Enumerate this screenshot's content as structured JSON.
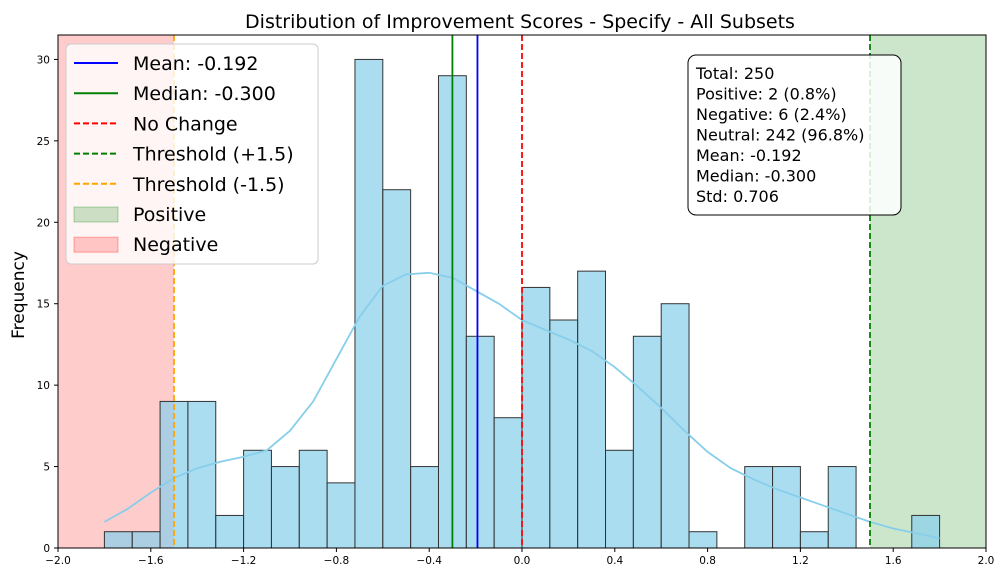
{
  "chart_data": {
    "type": "bar",
    "title": "Distribution of Improvement Scores - Specify - All Subsets",
    "xlabel": "",
    "ylabel": "Frequency",
    "xlim": [
      -2.0,
      2.0
    ],
    "ylim": [
      0,
      31.5
    ],
    "x_ticks": [
      -2.0,
      -1.6,
      -1.2,
      -0.8,
      -0.4,
      0.0,
      0.4,
      0.8,
      1.2,
      1.6,
      2.0
    ],
    "x_tick_labels": [
      "−2.0",
      "−1.6",
      "−1.2",
      "−0.8",
      "−0.4",
      "0.0",
      "0.4",
      "0.8",
      "1.2",
      "1.6",
      "2.0"
    ],
    "y_ticks": [
      0,
      5,
      10,
      15,
      20,
      25,
      30
    ],
    "y_tick_labels": [
      "0",
      "5",
      "10",
      "15",
      "20",
      "25",
      "30"
    ],
    "bin_start": -1.8,
    "bin_width": 0.12,
    "bins": [
      {
        "x0": -1.8,
        "x1": -1.68,
        "count": 1,
        "region": "negative"
      },
      {
        "x0": -1.68,
        "x1": -1.56,
        "count": 1,
        "region": "negative"
      },
      {
        "x0": -1.56,
        "x1": -1.44,
        "count": 9,
        "region": "negative"
      },
      {
        "x0": -1.44,
        "x1": -1.32,
        "count": 9,
        "region": "neutral"
      },
      {
        "x0": -1.32,
        "x1": -1.2,
        "count": 2,
        "region": "neutral"
      },
      {
        "x0": -1.2,
        "x1": -1.08,
        "count": 6,
        "region": "neutral"
      },
      {
        "x0": -1.08,
        "x1": -0.96,
        "count": 5,
        "region": "neutral"
      },
      {
        "x0": -0.96,
        "x1": -0.84,
        "count": 6,
        "region": "neutral"
      },
      {
        "x0": -0.84,
        "x1": -0.72,
        "count": 4,
        "region": "neutral"
      },
      {
        "x0": -0.72,
        "x1": -0.6,
        "count": 30,
        "region": "neutral"
      },
      {
        "x0": -0.6,
        "x1": -0.48,
        "count": 22,
        "region": "neutral"
      },
      {
        "x0": -0.48,
        "x1": -0.36,
        "count": 5,
        "region": "neutral"
      },
      {
        "x0": -0.36,
        "x1": -0.24,
        "count": 29,
        "region": "neutral"
      },
      {
        "x0": -0.24,
        "x1": -0.12,
        "count": 13,
        "region": "neutral"
      },
      {
        "x0": -0.12,
        "x1": 0.0,
        "count": 8,
        "region": "neutral"
      },
      {
        "x0": 0.0,
        "x1": 0.12,
        "count": 16,
        "region": "neutral"
      },
      {
        "x0": 0.12,
        "x1": 0.24,
        "count": 14,
        "region": "neutral"
      },
      {
        "x0": 0.24,
        "x1": 0.36,
        "count": 17,
        "region": "neutral"
      },
      {
        "x0": 0.36,
        "x1": 0.48,
        "count": 6,
        "region": "neutral"
      },
      {
        "x0": 0.48,
        "x1": 0.6,
        "count": 13,
        "region": "neutral"
      },
      {
        "x0": 0.6,
        "x1": 0.72,
        "count": 15,
        "region": "neutral"
      },
      {
        "x0": 0.72,
        "x1": 0.84,
        "count": 1,
        "region": "neutral"
      },
      {
        "x0": 0.84,
        "x1": 0.96,
        "count": 0,
        "region": "neutral"
      },
      {
        "x0": 0.96,
        "x1": 1.08,
        "count": 5,
        "region": "neutral"
      },
      {
        "x0": 1.08,
        "x1": 1.2,
        "count": 5,
        "region": "neutral"
      },
      {
        "x0": 1.2,
        "x1": 1.32,
        "count": 1,
        "region": "neutral"
      },
      {
        "x0": 1.32,
        "x1": 1.44,
        "count": 5,
        "region": "neutral"
      },
      {
        "x0": 1.44,
        "x1": 1.56,
        "count": 0,
        "region": "neutral"
      },
      {
        "x0": 1.56,
        "x1": 1.68,
        "count": 0,
        "region": "neutral"
      },
      {
        "x0": 1.68,
        "x1": 1.8,
        "count": 2,
        "region": "positive"
      }
    ],
    "kde": {
      "x": [
        -1.8,
        -1.7,
        -1.6,
        -1.5,
        -1.4,
        -1.3,
        -1.2,
        -1.1,
        -1.0,
        -0.9,
        -0.8,
        -0.7,
        -0.6,
        -0.5,
        -0.4,
        -0.3,
        -0.2,
        -0.1,
        0.0,
        0.1,
        0.2,
        0.3,
        0.4,
        0.5,
        0.6,
        0.7,
        0.8,
        0.9,
        1.0,
        1.1,
        1.2,
        1.3,
        1.4,
        1.5,
        1.6,
        1.7,
        1.8
      ],
      "y": [
        1.6,
        2.4,
        3.4,
        4.3,
        4.9,
        5.3,
        5.6,
        6.0,
        7.2,
        9.0,
        11.6,
        14.2,
        16.1,
        16.8,
        16.9,
        16.6,
        15.8,
        15.0,
        14.0,
        13.4,
        12.8,
        12.1,
        11.1,
        9.9,
        8.6,
        7.2,
        5.9,
        4.9,
        4.2,
        3.6,
        3.1,
        2.6,
        2.1,
        1.6,
        1.2,
        0.9,
        0.6
      ],
      "color": "#87CEEB"
    },
    "vertical_lines": [
      {
        "name": "mean",
        "label": "Mean: -0.192",
        "x": -0.192,
        "color": "#0000FF",
        "style": "solid"
      },
      {
        "name": "median",
        "label": "Median: -0.300",
        "x": -0.3,
        "color": "#008000",
        "style": "solid"
      },
      {
        "name": "no-change",
        "label": "No Change",
        "x": 0.0,
        "color": "#FF0000",
        "style": "dashed"
      },
      {
        "name": "threshold-plus",
        "label": "Threshold (+1.5)",
        "x": 1.5,
        "color": "#008000",
        "style": "dashed"
      },
      {
        "name": "threshold-minus",
        "label": "Threshold (-1.5)",
        "x": -1.5,
        "color": "#FFA500",
        "style": "dashed"
      }
    ],
    "regions": [
      {
        "name": "positive",
        "label": "Positive",
        "x0": 1.5,
        "x1": 2.0,
        "color": "#008000",
        "opacity": 0.2
      },
      {
        "name": "negative",
        "label": "Negative",
        "x0": -2.0,
        "x1": -1.5,
        "color": "#FF0000",
        "opacity": 0.2
      }
    ],
    "colors": {
      "bar": "#87CEEB",
      "bar_edge": "#333333"
    },
    "legend": {
      "position": "top-left",
      "entries": [
        "Mean: -0.192",
        "Median: -0.300",
        "No Change",
        "Threshold (+1.5)",
        "Threshold (-1.5)",
        "Positive",
        "Negative"
      ]
    },
    "stats_box": {
      "position": "top-right",
      "lines": [
        "Total: 250",
        "Positive: 2 (0.8%)",
        "Negative: 6 (2.4%)",
        "Neutral: 242 (96.8%)",
        "Mean: -0.192",
        "Median: -0.300",
        "Std: 0.706"
      ]
    }
  }
}
